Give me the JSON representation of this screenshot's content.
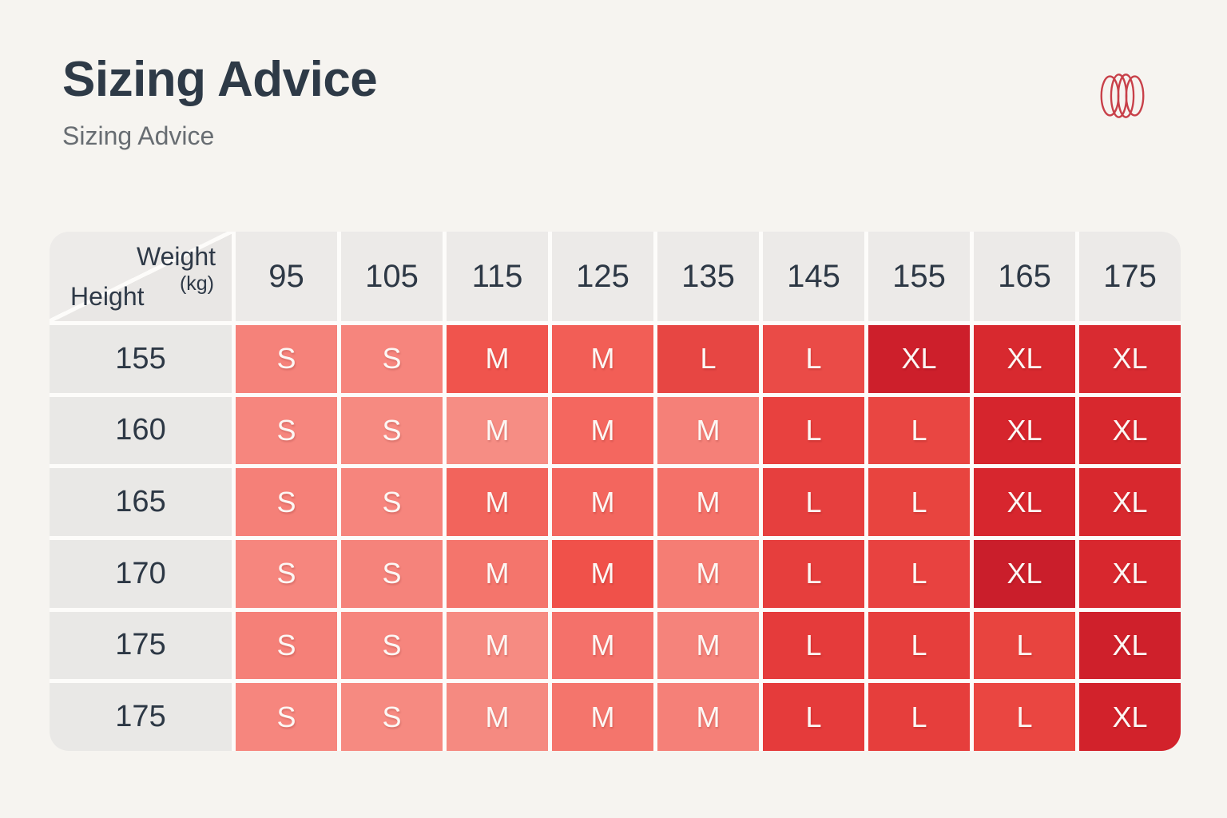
{
  "page": {
    "background": "#f6f4f0",
    "title": "Sizing Advice",
    "subtitle": "Sizing Advice"
  },
  "logo": {
    "name": "overlapping-rings-logo",
    "color": "#c84049"
  },
  "chart_data": {
    "type": "heatmap",
    "title": "Sizing Advice",
    "corner": {
      "top_label": "Weight",
      "unit": "(kg)",
      "bottom_label": "Height"
    },
    "xlabel": "Weight (kg)",
    "ylabel": "Height",
    "categories": [
      "95",
      "105",
      "115",
      "125",
      "135",
      "145",
      "155",
      "165",
      "175"
    ],
    "rows": [
      {
        "height": "155",
        "cells": [
          {
            "label": "S",
            "color": "#f5827a"
          },
          {
            "label": "S",
            "color": "#f6857d"
          },
          {
            "label": "M",
            "color": "#f0544d"
          },
          {
            "label": "M",
            "color": "#f25e56"
          },
          {
            "label": "L",
            "color": "#e74643"
          },
          {
            "label": "L",
            "color": "#ea4b47"
          },
          {
            "label": "XL",
            "color": "#cd1f2b"
          },
          {
            "label": "XL",
            "color": "#d8292f"
          },
          {
            "label": "XL",
            "color": "#d92b31"
          }
        ]
      },
      {
        "height": "160",
        "cells": [
          {
            "label": "S",
            "color": "#f6867e"
          },
          {
            "label": "S",
            "color": "#f68a81"
          },
          {
            "label": "M",
            "color": "#f68d84"
          },
          {
            "label": "M",
            "color": "#f4675f"
          },
          {
            "label": "M",
            "color": "#f58078"
          },
          {
            "label": "L",
            "color": "#e8413f"
          },
          {
            "label": "L",
            "color": "#e94642"
          },
          {
            "label": "XL",
            "color": "#d6252d"
          },
          {
            "label": "XL",
            "color": "#d8282e"
          }
        ]
      },
      {
        "height": "165",
        "cells": [
          {
            "label": "S",
            "color": "#f58078"
          },
          {
            "label": "S",
            "color": "#f6857d"
          },
          {
            "label": "M",
            "color": "#f2645c"
          },
          {
            "label": "M",
            "color": "#f3665e"
          },
          {
            "label": "M",
            "color": "#f47169"
          },
          {
            "label": "L",
            "color": "#e63f3e"
          },
          {
            "label": "L",
            "color": "#e8443f"
          },
          {
            "label": "XL",
            "color": "#d7262e"
          },
          {
            "label": "XL",
            "color": "#d8282e"
          }
        ]
      },
      {
        "height": "170",
        "cells": [
          {
            "label": "S",
            "color": "#f6867e"
          },
          {
            "label": "S",
            "color": "#f5837b"
          },
          {
            "label": "M",
            "color": "#f4756c"
          },
          {
            "label": "M",
            "color": "#f0514a"
          },
          {
            "label": "M",
            "color": "#f57d74"
          },
          {
            "label": "L",
            "color": "#e63e3d"
          },
          {
            "label": "L",
            "color": "#e84240"
          },
          {
            "label": "XL",
            "color": "#ca1e2b"
          },
          {
            "label": "XL",
            "color": "#d8272e"
          }
        ]
      },
      {
        "height": "175",
        "cells": [
          {
            "label": "S",
            "color": "#f58078"
          },
          {
            "label": "S",
            "color": "#f6857d"
          },
          {
            "label": "M",
            "color": "#f68b82"
          },
          {
            "label": "M",
            "color": "#f4716a"
          },
          {
            "label": "M",
            "color": "#f5837b"
          },
          {
            "label": "L",
            "color": "#e53b3b"
          },
          {
            "label": "L",
            "color": "#e63e3c"
          },
          {
            "label": "L",
            "color": "#e8443f"
          },
          {
            "label": "XL",
            "color": "#cf202b"
          }
        ]
      },
      {
        "height": "175",
        "cells": [
          {
            "label": "S",
            "color": "#f6867e"
          },
          {
            "label": "S",
            "color": "#f68a81"
          },
          {
            "label": "M",
            "color": "#f58a81"
          },
          {
            "label": "M",
            "color": "#f4756c"
          },
          {
            "label": "M",
            "color": "#f58078"
          },
          {
            "label": "L",
            "color": "#e53b3b"
          },
          {
            "label": "L",
            "color": "#e63e3c"
          },
          {
            "label": "L",
            "color": "#ea4641"
          },
          {
            "label": "XL",
            "color": "#d2222b"
          }
        ]
      }
    ]
  }
}
